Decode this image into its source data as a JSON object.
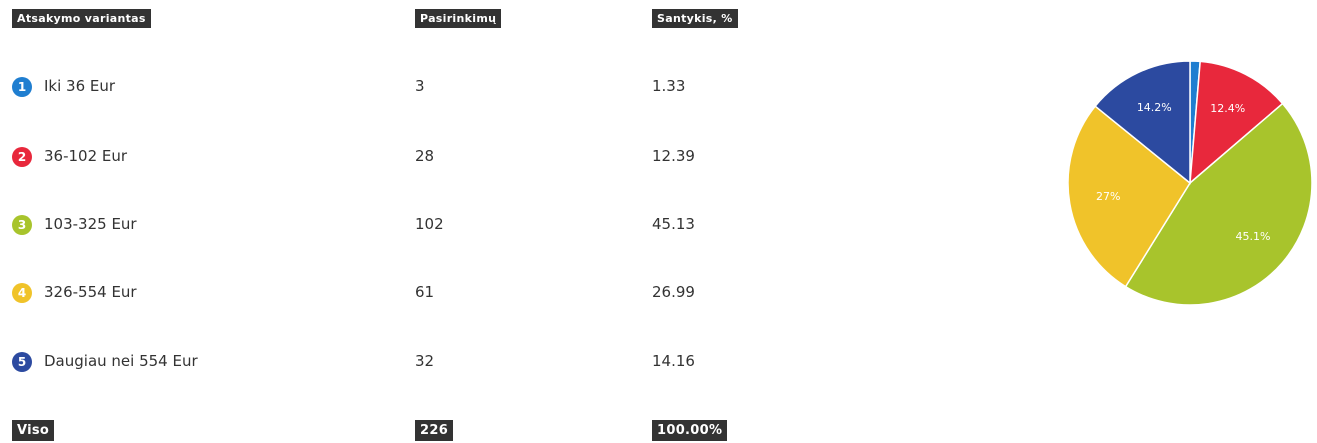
{
  "table": {
    "header": [
      "Atsakymo variantas",
      "Pasirinkimų",
      "Santykis, %"
    ],
    "rows": [
      {
        "badge": "1",
        "badge_color": "#1f7ed0",
        "label": "Iki 36 Eur",
        "count": "3",
        "ratio": "1.33"
      },
      {
        "badge": "2",
        "badge_color": "#e8283c",
        "label": "36-102 Eur",
        "count": "28",
        "ratio": "12.39"
      },
      {
        "badge": "3",
        "badge_color": "#a8c42c",
        "label": "103-325 Eur",
        "count": "102",
        "ratio": "45.13"
      },
      {
        "badge": "4",
        "badge_color": "#f0c32a",
        "label": "326-554 Eur",
        "count": "61",
        "ratio": "26.99"
      },
      {
        "badge": "5",
        "badge_color": "#2c4aa0",
        "label": "Daugiau nei 554 Eur",
        "count": "32",
        "ratio": "14.16"
      }
    ],
    "footer": [
      "Viso",
      "226",
      "100.00%"
    ]
  },
  "chart_data": {
    "type": "pie",
    "categories": [
      "Iki 36 Eur",
      "36-102 Eur",
      "103-325 Eur",
      "326-554 Eur",
      "Daugiau nei 554 Eur"
    ],
    "values": [
      1.33,
      12.39,
      45.13,
      26.99,
      14.16
    ],
    "value_labels": [
      null,
      "12.4%",
      "45.1%",
      "27%",
      "14.2%"
    ],
    "colors": [
      "#1f7ed0",
      "#e8283c",
      "#a8c42c",
      "#f0c32a",
      "#2c4aa0"
    ]
  }
}
